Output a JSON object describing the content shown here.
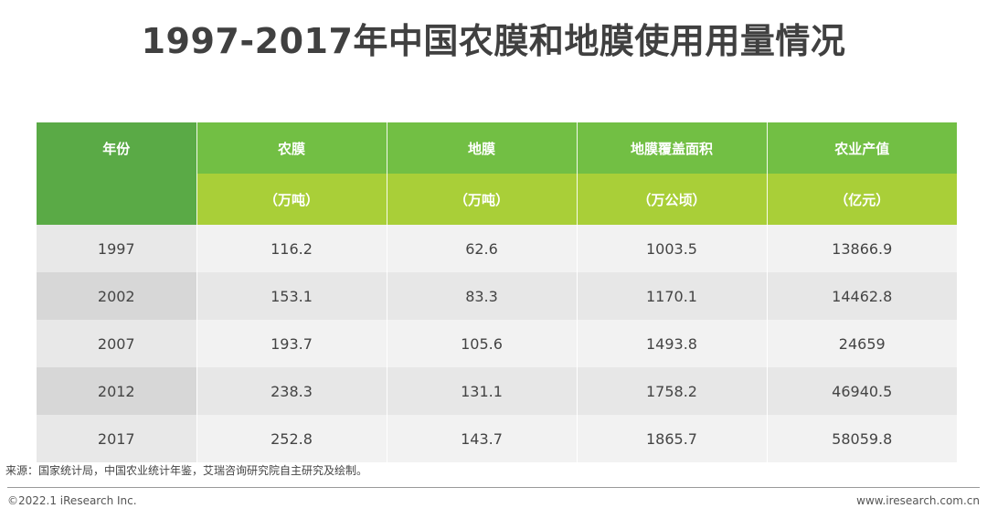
{
  "title": "1997-2017年中国农膜和地膜使用用量情况",
  "table": {
    "headers": [
      "年份",
      "农膜",
      "地膜",
      "地膜覆盖面积",
      "农业产值"
    ],
    "units": [
      "",
      "（万吨）",
      "（万吨）",
      "（万公顷）",
      "（亿元）"
    ],
    "rows": [
      [
        "1997",
        "116.2",
        "62.6",
        "1003.5",
        "13866.9"
      ],
      [
        "2002",
        "153.1",
        "83.3",
        "1170.1",
        "14462.8"
      ],
      [
        "2007",
        "193.7",
        "105.6",
        "1493.8",
        "24659"
      ],
      [
        "2012",
        "238.3",
        "131.1",
        "1758.2",
        "46940.5"
      ],
      [
        "2017",
        "252.8",
        "143.7",
        "1865.7",
        "58059.8"
      ]
    ]
  },
  "footer": {
    "source": "来源：国家统计局，中国农业统计年鉴，艾瑞咨询研究院自主研究及绘制。",
    "copyright": "©2022.1 iResearch Inc.",
    "website": "www.iresearch.com.cn"
  },
  "colors": {
    "header_dark_green": "#5aaa46",
    "header_green": "#72bf44",
    "header_lime": "#a9cf38"
  }
}
